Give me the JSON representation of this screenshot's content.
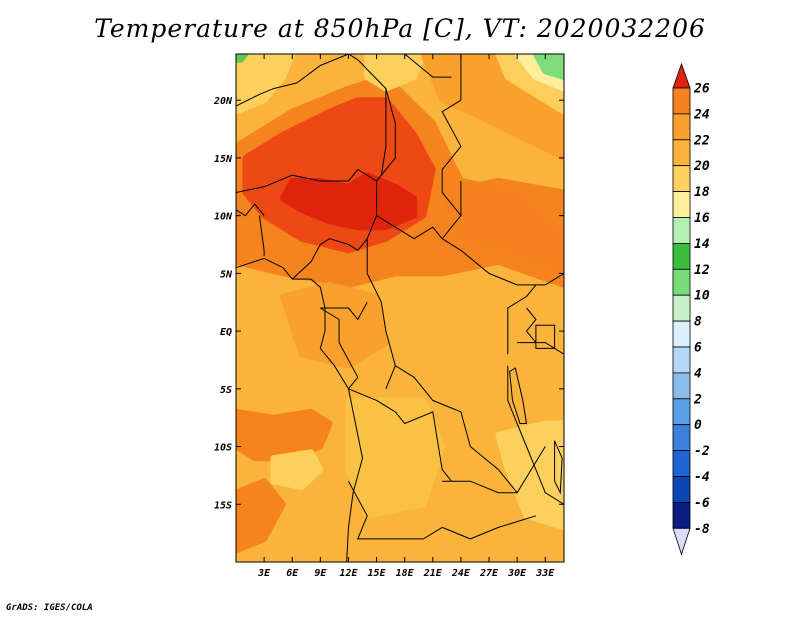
{
  "title": "Temperature at 850hPa [C], VT: 2020032206",
  "credit": "GrADS: IGES/COLA",
  "map": {
    "lon_range": [
      0,
      35
    ],
    "lat_range": [
      -20,
      24
    ],
    "lon_ticks": [
      {
        "lon": 3,
        "label": "3E"
      },
      {
        "lon": 6,
        "label": "6E"
      },
      {
        "lon": 9,
        "label": "9E"
      },
      {
        "lon": 12,
        "label": "12E"
      },
      {
        "lon": 15,
        "label": "15E"
      },
      {
        "lon": 18,
        "label": "18E"
      },
      {
        "lon": 21,
        "label": "21E"
      },
      {
        "lon": 24,
        "label": "24E"
      },
      {
        "lon": 27,
        "label": "27E"
      },
      {
        "lon": 30,
        "label": "30E"
      },
      {
        "lon": 33,
        "label": "33E"
      }
    ],
    "lat_ticks": [
      {
        "lat": 20,
        "label": "20N"
      },
      {
        "lat": 15,
        "label": "15N"
      },
      {
        "lat": 10,
        "label": "10N"
      },
      {
        "lat": 5,
        "label": "5N"
      },
      {
        "lat": 0,
        "label": "EQ"
      },
      {
        "lat": -5,
        "label": "5S"
      },
      {
        "lat": -10,
        "label": "10S"
      },
      {
        "lat": -15,
        "label": "15S"
      }
    ],
    "base_color": "#fab43c",
    "regions": [
      {
        "name": "sahara-warm",
        "color": "#f5821e",
        "points": [
          [
            0,
            16
          ],
          [
            6,
            19
          ],
          [
            12,
            21
          ],
          [
            16,
            22
          ],
          [
            21,
            18
          ],
          [
            24,
            13
          ],
          [
            30,
            12
          ],
          [
            35,
            8
          ],
          [
            35,
            4
          ],
          [
            28,
            6
          ],
          [
            22,
            5
          ],
          [
            17,
            5
          ],
          [
            12,
            4
          ],
          [
            5,
            5
          ],
          [
            0,
            6
          ]
        ]
      },
      {
        "name": "sahel-hot",
        "color": "#ec4614",
        "points": [
          [
            1,
            15
          ],
          [
            5,
            17
          ],
          [
            10,
            19
          ],
          [
            13,
            20
          ],
          [
            16,
            20
          ],
          [
            19,
            17
          ],
          [
            21,
            14
          ],
          [
            20,
            10
          ],
          [
            16,
            8
          ],
          [
            12,
            7
          ],
          [
            7,
            8
          ],
          [
            3,
            10
          ],
          [
            1,
            12
          ]
        ]
      },
      {
        "name": "core-hottest",
        "color": "#e0230c",
        "points": [
          [
            6,
            13
          ],
          [
            9,
            13
          ],
          [
            12,
            12.5
          ],
          [
            14,
            13.5
          ],
          [
            17,
            12.5
          ],
          [
            19,
            11.5
          ],
          [
            19,
            10
          ],
          [
            16,
            9
          ],
          [
            13,
            9
          ],
          [
            10,
            9.5
          ],
          [
            7,
            10.5
          ],
          [
            5,
            11.5
          ]
        ]
      },
      {
        "name": "upper-left-cool",
        "color": "#fdd25f",
        "points": [
          [
            0,
            24
          ],
          [
            6,
            24
          ],
          [
            5,
            22
          ],
          [
            3,
            20
          ],
          [
            0,
            19
          ]
        ]
      },
      {
        "name": "upper-left-cool-2",
        "color": "#fdd25f",
        "points": [
          [
            14,
            24
          ],
          [
            20,
            24
          ],
          [
            19,
            22
          ],
          [
            16,
            21
          ],
          [
            14,
            22
          ]
        ]
      },
      {
        "name": "ne-warm-band",
        "color": "#faa02d",
        "points": [
          [
            20,
            24
          ],
          [
            35,
            24
          ],
          [
            35,
            15
          ],
          [
            30,
            17
          ],
          [
            25,
            19
          ],
          [
            22,
            20
          ]
        ]
      },
      {
        "name": "ne-cool",
        "color": "#fdd25f",
        "points": [
          [
            28,
            24
          ],
          [
            35,
            24
          ],
          [
            35,
            19
          ],
          [
            31,
            21
          ],
          [
            29,
            22
          ]
        ]
      },
      {
        "name": "ne-pale",
        "color": "#fff0a0",
        "points": [
          [
            30,
            24
          ],
          [
            35,
            24
          ],
          [
            35,
            21
          ],
          [
            32,
            22
          ]
        ]
      },
      {
        "name": "ne-green",
        "color": "#78dc78",
        "points": [
          [
            32,
            24
          ],
          [
            35,
            24
          ],
          [
            35,
            22
          ],
          [
            33,
            22.5
          ]
        ]
      },
      {
        "name": "ne-green-2",
        "color": "#5ac85a",
        "points": [
          [
            0,
            24
          ],
          [
            1,
            24
          ],
          [
            0.5,
            23.5
          ],
          [
            0,
            23.5
          ]
        ]
      },
      {
        "name": "east-warm",
        "color": "#f5821e",
        "points": [
          [
            22,
            12
          ],
          [
            28,
            13
          ],
          [
            35,
            12
          ],
          [
            35,
            5
          ],
          [
            29,
            7
          ],
          [
            24,
            8
          ]
        ]
      },
      {
        "name": "central-blob",
        "color": "#faa02d",
        "points": [
          [
            5,
            3
          ],
          [
            10,
            4
          ],
          [
            15,
            3
          ],
          [
            16,
            -1
          ],
          [
            12,
            -3
          ],
          [
            7,
            -2
          ]
        ]
      },
      {
        "name": "south-hot-band",
        "color": "#f5821e",
        "points": [
          [
            0,
            -7
          ],
          [
            4,
            -7.5
          ],
          [
            8,
            -7
          ],
          [
            10,
            -8
          ],
          [
            9,
            -10
          ],
          [
            6,
            -11
          ],
          [
            2,
            -11
          ],
          [
            0,
            -10
          ]
        ]
      },
      {
        "name": "south-cool-patch",
        "color": "#fdd25f",
        "points": [
          [
            4,
            -11
          ],
          [
            8,
            -10.5
          ],
          [
            9,
            -12
          ],
          [
            7,
            -13.5
          ],
          [
            4,
            -13
          ]
        ]
      },
      {
        "name": "south-warm-2",
        "color": "#f5821e",
        "points": [
          [
            0,
            -14
          ],
          [
            3,
            -13
          ],
          [
            5,
            -15
          ],
          [
            3,
            -18
          ],
          [
            0,
            -19
          ]
        ]
      },
      {
        "name": "southeast-pale",
        "color": "#fdd25f",
        "points": [
          [
            28,
            -9
          ],
          [
            33,
            -8
          ],
          [
            35,
            -8
          ],
          [
            35,
            -17
          ],
          [
            31,
            -16
          ],
          [
            29,
            -12
          ]
        ]
      },
      {
        "name": "south-central-light",
        "color": "#fbc346",
        "points": [
          [
            12,
            -6
          ],
          [
            20,
            -6
          ],
          [
            22,
            -10
          ],
          [
            20,
            -15
          ],
          [
            14,
            -16
          ],
          [
            12,
            -12
          ]
        ]
      }
    ],
    "borders": [
      [
        [
          0,
          19.5
        ],
        [
          2.5,
          20.5
        ],
        [
          4,
          21
        ],
        [
          6.5,
          21.5
        ],
        [
          9,
          23
        ],
        [
          12,
          24
        ]
      ],
      [
        [
          12,
          24
        ],
        [
          13,
          23.5
        ],
        [
          16,
          21
        ],
        [
          16,
          16
        ],
        [
          15.5,
          13.5
        ]
      ],
      [
        [
          14,
          24
        ],
        [
          18,
          24
        ],
        [
          21,
          22
        ],
        [
          23,
          22
        ]
      ],
      [
        [
          24,
          20
        ],
        [
          24,
          24
        ]
      ],
      [
        [
          24,
          20
        ],
        [
          22,
          19
        ],
        [
          24,
          16
        ],
        [
          22,
          14
        ],
        [
          22,
          12
        ],
        [
          24,
          10
        ]
      ],
      [
        [
          16,
          21
        ],
        [
          17,
          18
        ],
        [
          17,
          15
        ],
        [
          15,
          13
        ]
      ],
      [
        [
          0,
          12
        ],
        [
          3,
          12.5
        ],
        [
          6,
          13.5
        ],
        [
          9,
          13
        ],
        [
          12,
          13
        ],
        [
          13,
          14
        ],
        [
          15,
          13
        ]
      ],
      [
        [
          0,
          10.5
        ],
        [
          1,
          10
        ],
        [
          2,
          11
        ],
        [
          3,
          10
        ]
      ],
      [
        [
          2.5,
          10
        ],
        [
          3,
          7
        ],
        [
          3,
          6.5
        ]
      ],
      [
        [
          15,
          13
        ],
        [
          15,
          10
        ],
        [
          14,
          8
        ],
        [
          13,
          7
        ],
        [
          12,
          7.5
        ],
        [
          10,
          8
        ],
        [
          9,
          7.5
        ],
        [
          8,
          6
        ],
        [
          6,
          4.5
        ]
      ],
      [
        [
          15,
          10
        ],
        [
          17,
          9
        ],
        [
          19,
          8
        ],
        [
          21,
          9
        ],
        [
          22,
          8
        ],
        [
          24,
          7
        ],
        [
          27,
          5
        ],
        [
          30,
          4
        ],
        [
          33,
          4
        ],
        [
          35,
          5
        ]
      ],
      [
        [
          22,
          8
        ],
        [
          24,
          10
        ],
        [
          24,
          13
        ]
      ],
      [
        [
          14,
          8
        ],
        [
          14,
          5
        ],
        [
          15.5,
          2.5
        ],
        [
          16,
          0
        ],
        [
          17,
          -3
        ],
        [
          16,
          -5
        ]
      ],
      [
        [
          9,
          2
        ],
        [
          12,
          2
        ],
        [
          13,
          1
        ],
        [
          14,
          2.5
        ]
      ],
      [
        [
          9,
          2
        ],
        [
          11,
          1
        ],
        [
          11,
          -1
        ],
        [
          13,
          -4
        ],
        [
          12,
          -5
        ]
      ],
      [
        [
          17,
          -3
        ],
        [
          19,
          -4
        ],
        [
          21,
          -6
        ],
        [
          24,
          -7
        ],
        [
          25,
          -10
        ],
        [
          28,
          -12
        ],
        [
          30,
          -14
        ],
        [
          33,
          -10
        ]
      ],
      [
        [
          12,
          -5
        ],
        [
          15,
          -6
        ],
        [
          17,
          -7
        ],
        [
          18,
          -8
        ],
        [
          21,
          -7
        ],
        [
          22,
          -12
        ],
        [
          23,
          -13
        ]
      ],
      [
        [
          12,
          -13
        ],
        [
          14,
          -16
        ],
        [
          13,
          -18
        ],
        [
          20,
          -18
        ],
        [
          22,
          -17
        ]
      ],
      [
        [
          22,
          -17
        ],
        [
          25,
          -18
        ],
        [
          28,
          -17
        ],
        [
          32,
          -16
        ]
      ],
      [
        [
          22,
          -13
        ],
        [
          25,
          -13
        ],
        [
          28,
          -14
        ],
        [
          30,
          -14
        ]
      ],
      [
        [
          29,
          -2
        ],
        [
          29,
          2
        ],
        [
          31,
          3
        ],
        [
          32,
          4
        ]
      ],
      [
        [
          30,
          -1
        ],
        [
          33,
          -1
        ],
        [
          35,
          -2
        ]
      ],
      [
        [
          31,
          2
        ],
        [
          32,
          1
        ],
        [
          31,
          0
        ],
        [
          32,
          -1
        ]
      ],
      [
        [
          30,
          -8
        ],
        [
          31,
          -10
        ],
        [
          32,
          -12
        ],
        [
          33,
          -14
        ],
        [
          35,
          -15
        ]
      ],
      [
        [
          29,
          -3
        ],
        [
          29,
          -6
        ],
        [
          30,
          -8
        ]
      ]
    ],
    "lakes": [
      [
        [
          32,
          0.5
        ],
        [
          34,
          0.5
        ],
        [
          34,
          -1.5
        ],
        [
          32,
          -1.5
        ]
      ],
      [
        [
          29.2,
          -3.5
        ],
        [
          29.8,
          -3.2
        ],
        [
          30.6,
          -6
        ],
        [
          31,
          -8
        ],
        [
          30.3,
          -8
        ],
        [
          29.5,
          -6
        ]
      ],
      [
        [
          34,
          -9.5
        ],
        [
          34.8,
          -11
        ],
        [
          34.6,
          -14
        ],
        [
          34,
          -13
        ]
      ]
    ],
    "coast": [
      [
        [
          0,
          5.5
        ],
        [
          3,
          6.3
        ],
        [
          5,
          5.5
        ],
        [
          6,
          4.5
        ],
        [
          8,
          4.5
        ],
        [
          9,
          3.8
        ],
        [
          9.5,
          2
        ],
        [
          9.5,
          0
        ],
        [
          9,
          -1.5
        ],
        [
          10.5,
          -3
        ],
        [
          12,
          -5
        ],
        [
          12.5,
          -7
        ],
        [
          13,
          -9
        ],
        [
          13.5,
          -11
        ],
        [
          12.5,
          -14
        ],
        [
          12,
          -17
        ],
        [
          11.8,
          -20
        ]
      ]
    ]
  },
  "colorbar": {
    "levels": [
      {
        "label": "26",
        "color": "#ec4614"
      },
      {
        "label": "24",
        "color": "#f5821e"
      },
      {
        "label": "22",
        "color": "#faa02d"
      },
      {
        "label": "20",
        "color": "#fab43c"
      },
      {
        "label": "18",
        "color": "#fdd25f"
      },
      {
        "label": "16",
        "color": "#fff0a0"
      },
      {
        "label": "14",
        "color": "#b4f0b4"
      },
      {
        "label": "12",
        "color": "#3cbe3c"
      },
      {
        "label": "10",
        "color": "#78dc78"
      },
      {
        "label": "8",
        "color": "#c8f0c8"
      },
      {
        "label": "6",
        "color": "#dcf0ff"
      },
      {
        "label": "4",
        "color": "#b4d7f5"
      },
      {
        "label": "2",
        "color": "#8cbeeb"
      },
      {
        "label": "0",
        "color": "#5aa0e6"
      },
      {
        "label": "-2",
        "color": "#3c82dc"
      },
      {
        "label": "-4",
        "color": "#1e64d2"
      },
      {
        "label": "-6",
        "color": "#0a46b4"
      },
      {
        "label": "-8",
        "color": "#0a1e82"
      }
    ],
    "top_arrow_color": "#e0230c",
    "bottom_arrow_color": "#dcdcf8",
    "bottom_label": "-8"
  }
}
